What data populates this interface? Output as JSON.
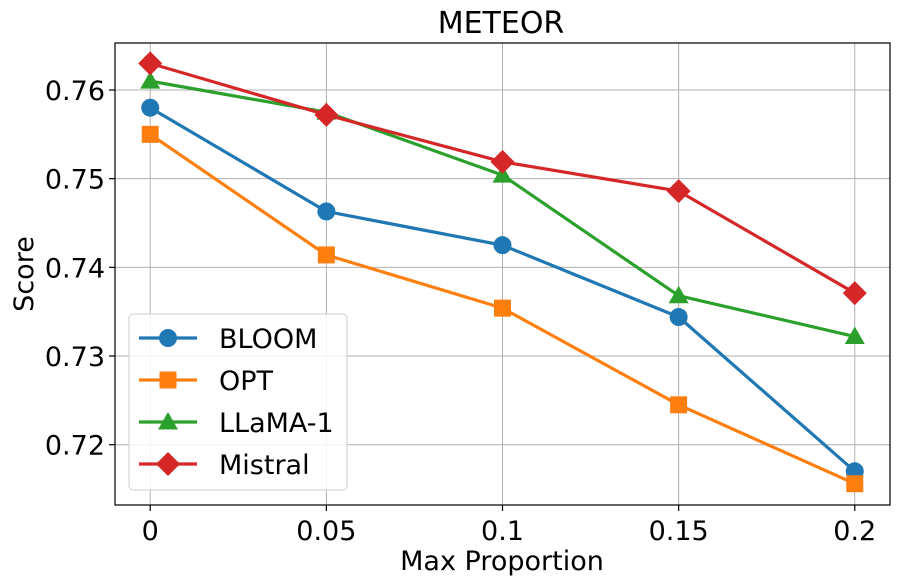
{
  "chart_data": {
    "type": "line",
    "title": "METEOR",
    "xlabel": "Max Proportion",
    "ylabel": "Score",
    "categories": [
      "0",
      "0.05",
      "0.1",
      "0.15",
      "0.2"
    ],
    "x": [
      0,
      0.05,
      0.1,
      0.15,
      0.2
    ],
    "xlim": [
      -0.01,
      0.21
    ],
    "ylim": [
      0.7132,
      0.7653
    ],
    "yticks": [
      0.72,
      0.73,
      0.74,
      0.75,
      0.76
    ],
    "ytick_labels": [
      "0.72",
      "0.73",
      "0.74",
      "0.75",
      "0.76"
    ],
    "grid": true,
    "legend_position": "lower-left",
    "series": [
      {
        "name": "BLOOM",
        "color": "#1f77b4",
        "marker": "circle",
        "values": [
          0.758,
          0.7463,
          0.7425,
          0.7344,
          0.717
        ]
      },
      {
        "name": "OPT",
        "color": "#ff7f0e",
        "marker": "square",
        "values": [
          0.755,
          0.7414,
          0.7354,
          0.7245,
          0.7156
        ]
      },
      {
        "name": "LLaMA-1",
        "color": "#2ca02c",
        "marker": "triangle",
        "values": [
          0.761,
          0.7575,
          0.7504,
          0.7368,
          0.7322
        ]
      },
      {
        "name": "Mistral",
        "color": "#d62728",
        "marker": "diamond",
        "values": [
          0.763,
          0.7572,
          0.7519,
          0.7486,
          0.7371
        ]
      }
    ]
  }
}
